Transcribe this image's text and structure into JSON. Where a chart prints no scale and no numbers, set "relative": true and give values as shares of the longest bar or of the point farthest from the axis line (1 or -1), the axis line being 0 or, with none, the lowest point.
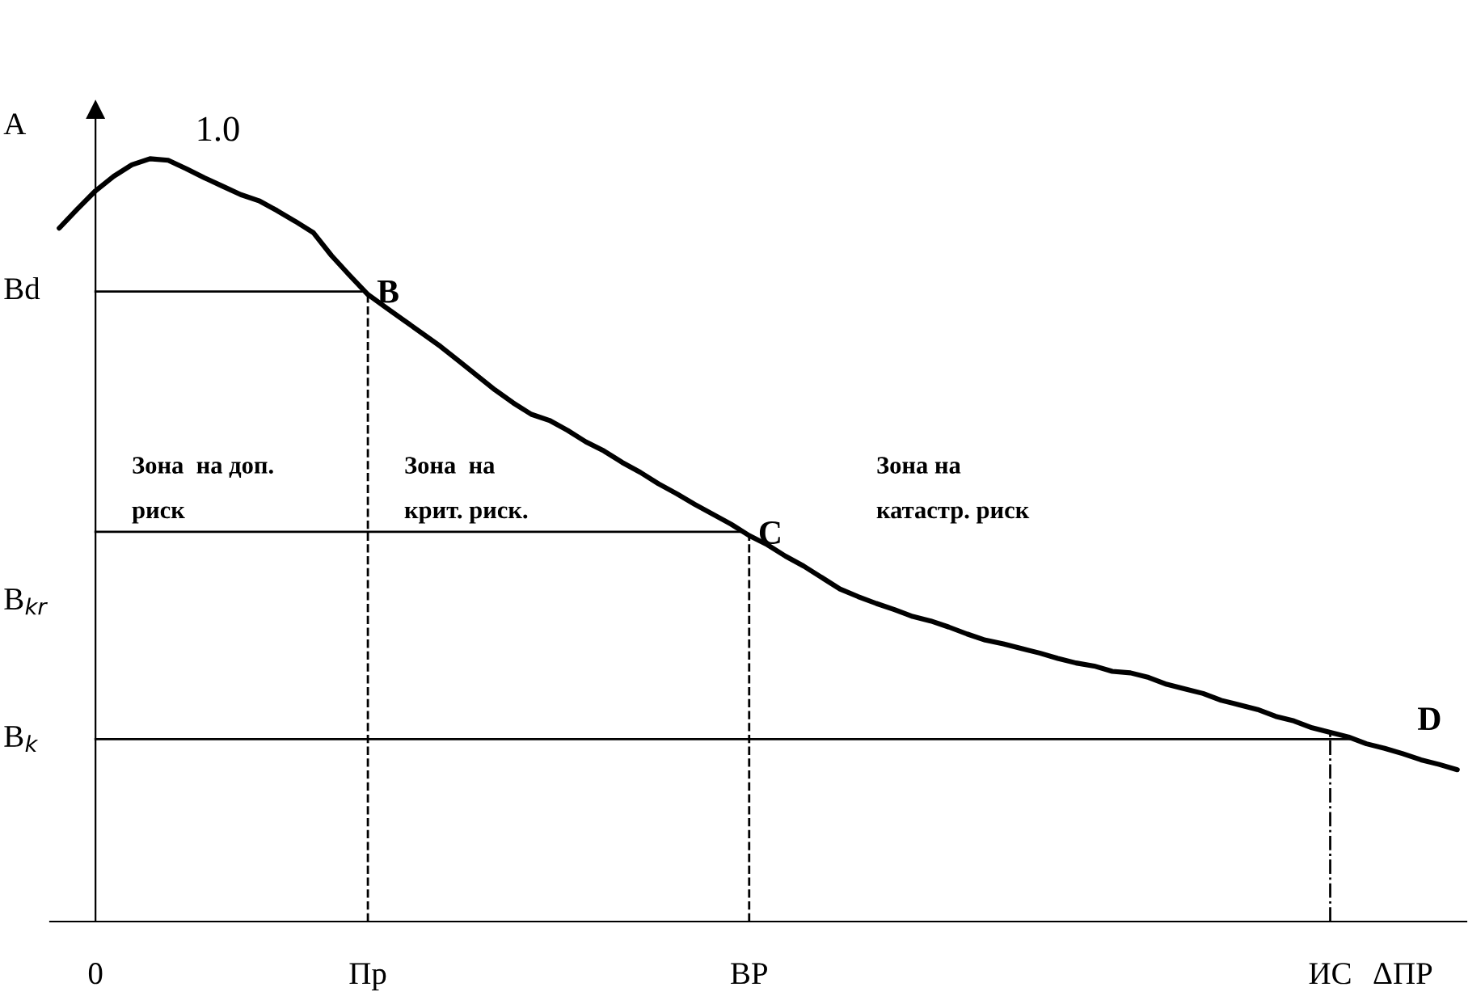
{
  "chart_data": {
    "type": "line",
    "relative": true,
    "grid": false,
    "legend": false,
    "marker": "none",
    "line_style": "solid",
    "categories": [
      null,
      null,
      "0",
      null,
      null,
      null,
      null,
      null,
      null,
      null,
      null,
      null,
      null,
      null,
      null,
      null,
      null,
      "Пр",
      null,
      null,
      null,
      null,
      null,
      null,
      null,
      null,
      null,
      null,
      null,
      null,
      null,
      null,
      null,
      null,
      null,
      null,
      null,
      null,
      "ВР",
      null,
      null,
      null,
      null,
      null,
      null,
      null,
      null,
      null,
      null,
      null,
      null,
      null,
      null,
      null,
      null,
      null,
      null,
      null,
      null,
      null,
      null,
      null,
      null,
      null,
      null,
      null,
      null,
      null,
      null,
      null,
      "ИС",
      null,
      null,
      null,
      "ΔПР",
      null,
      null,
      null
    ],
    "series": [
      {
        "color": "#000000",
        "values": [
          0.909,
          0.934,
          0.958,
          0.977,
          0.992,
          1.0,
          0.998,
          0.987,
          0.975,
          0.964,
          0.953,
          0.945,
          0.932,
          0.918,
          0.903,
          0.873,
          0.847,
          0.822,
          0.805,
          0.788,
          0.771,
          0.754,
          0.735,
          0.716,
          0.697,
          0.68,
          0.665,
          0.657,
          0.644,
          0.629,
          0.617,
          0.602,
          0.589,
          0.574,
          0.561,
          0.547,
          0.534,
          0.521,
          0.506,
          0.494,
          0.479,
          0.466,
          0.451,
          0.436,
          0.426,
          0.417,
          0.409,
          0.4,
          0.394,
          0.386,
          0.377,
          0.369,
          0.364,
          0.358,
          0.352,
          0.345,
          0.339,
          0.335,
          0.328,
          0.326,
          0.32,
          0.311,
          0.305,
          0.299,
          0.29,
          0.284,
          0.278,
          0.269,
          0.263,
          0.254,
          0.248,
          0.242,
          0.233,
          0.227,
          0.22,
          0.212,
          0.206,
          0.199
        ]
      }
    ],
    "ref_lines": [
      {
        "axis": "y",
        "value": 0.826,
        "line_style": "solid",
        "label": "Bd"
      },
      {
        "axis": "y",
        "value": 0.511,
        "line_style": "solid"
      },
      {
        "axis": "y",
        "value": 0.239,
        "line_style": "solid",
        "label": "B$_{k}$"
      },
      {
        "axis": "x",
        "value": "Пр",
        "line_style": "dashed"
      },
      {
        "axis": "x",
        "value": "ВР",
        "line_style": "dashed"
      },
      {
        "axis": "x",
        "value": "ИС",
        "line_style": "dashdot"
      }
    ],
    "annotations": [
      "A",
      "B$_{kr}$",
      "1.0",
      {
        "text": "B",
        "x": "Пр",
        "y": 0.822
      },
      {
        "text": "C",
        "x": "ВР",
        "y": 0.506
      },
      "D",
      "Зона  на доп.\n\nриск",
      "Зона  на\n\nкрит. риск.",
      "Зона на\n\nкатастр. риск"
    ]
  }
}
